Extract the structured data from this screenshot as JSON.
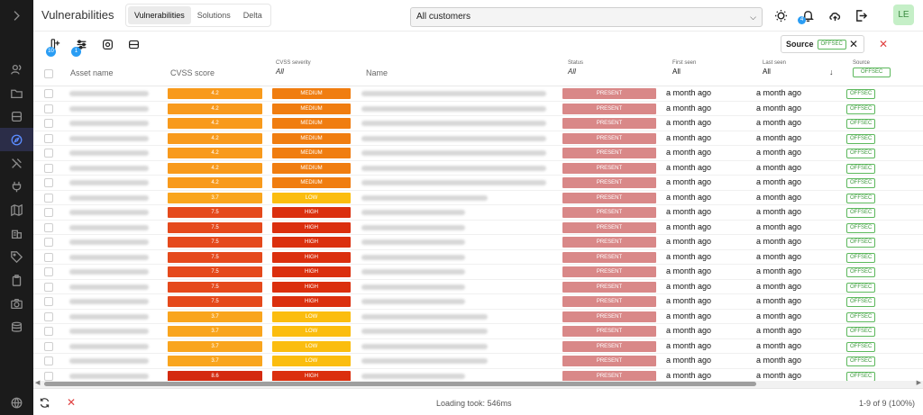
{
  "app": {
    "title": "Vulnerabilities"
  },
  "tabs": [
    {
      "label": "Vulnerabilities",
      "active": true
    },
    {
      "label": "Solutions",
      "active": false
    },
    {
      "label": "Delta",
      "active": false
    }
  ],
  "customer_select": {
    "value": "All customers"
  },
  "header_icons": {
    "theme": "sun-icon",
    "notifications": "bell-icon",
    "notification_count": "4",
    "cloud": "cloud-upload-icon",
    "logout": "logout-icon"
  },
  "user": {
    "initials": "LE"
  },
  "toolbar": {
    "columns_badge": "10",
    "filter_badge": "1",
    "filter_chip": {
      "label": "Source",
      "value": "OFFSEC"
    }
  },
  "columns": {
    "asset_name": "Asset name",
    "cvss_score": "CVSS score",
    "cvss_severity": "CVSS severity",
    "cvss_severity_filter": "All",
    "name": "Name",
    "status": "Status",
    "status_filter": "All",
    "first_seen": "First seen",
    "first_seen_filter": "All",
    "last_seen": "Last seen",
    "last_seen_filter": "All",
    "source": "Source",
    "source_filter": "OFFSEC"
  },
  "rows": [
    {
      "score": "4.2",
      "severity": "MEDIUM",
      "status": "PRESENT",
      "first_seen": "a month ago",
      "last_seen": "a month ago",
      "source": "OFFSEC"
    },
    {
      "score": "4.2",
      "severity": "MEDIUM",
      "status": "PRESENT",
      "first_seen": "a month ago",
      "last_seen": "a month ago",
      "source": "OFFSEC"
    },
    {
      "score": "4.2",
      "severity": "MEDIUM",
      "status": "PRESENT",
      "first_seen": "a month ago",
      "last_seen": "a month ago",
      "source": "OFFSEC"
    },
    {
      "score": "4.2",
      "severity": "MEDIUM",
      "status": "PRESENT",
      "first_seen": "a month ago",
      "last_seen": "a month ago",
      "source": "OFFSEC"
    },
    {
      "score": "4.2",
      "severity": "MEDIUM",
      "status": "PRESENT",
      "first_seen": "a month ago",
      "last_seen": "a month ago",
      "source": "OFFSEC"
    },
    {
      "score": "4.2",
      "severity": "MEDIUM",
      "status": "PRESENT",
      "first_seen": "a month ago",
      "last_seen": "a month ago",
      "source": "OFFSEC"
    },
    {
      "score": "4.2",
      "severity": "MEDIUM",
      "status": "PRESENT",
      "first_seen": "a month ago",
      "last_seen": "a month ago",
      "source": "OFFSEC"
    },
    {
      "score": "3.7",
      "severity": "LOW",
      "status": "PRESENT",
      "first_seen": "a month ago",
      "last_seen": "a month ago",
      "source": "OFFSEC"
    },
    {
      "score": "7.5",
      "severity": "HIGH",
      "status": "PRESENT",
      "first_seen": "a month ago",
      "last_seen": "a month ago",
      "source": "OFFSEC"
    },
    {
      "score": "7.5",
      "severity": "HIGH",
      "status": "PRESENT",
      "first_seen": "a month ago",
      "last_seen": "a month ago",
      "source": "OFFSEC"
    },
    {
      "score": "7.5",
      "severity": "HIGH",
      "status": "PRESENT",
      "first_seen": "a month ago",
      "last_seen": "a month ago",
      "source": "OFFSEC"
    },
    {
      "score": "7.5",
      "severity": "HIGH",
      "status": "PRESENT",
      "first_seen": "a month ago",
      "last_seen": "a month ago",
      "source": "OFFSEC"
    },
    {
      "score": "7.5",
      "severity": "HIGH",
      "status": "PRESENT",
      "first_seen": "a month ago",
      "last_seen": "a month ago",
      "source": "OFFSEC"
    },
    {
      "score": "7.5",
      "severity": "HIGH",
      "status": "PRESENT",
      "first_seen": "a month ago",
      "last_seen": "a month ago",
      "source": "OFFSEC"
    },
    {
      "score": "7.5",
      "severity": "HIGH",
      "status": "PRESENT",
      "first_seen": "a month ago",
      "last_seen": "a month ago",
      "source": "OFFSEC"
    },
    {
      "score": "3.7",
      "severity": "LOW",
      "status": "PRESENT",
      "first_seen": "a month ago",
      "last_seen": "a month ago",
      "source": "OFFSEC"
    },
    {
      "score": "3.7",
      "severity": "LOW",
      "status": "PRESENT",
      "first_seen": "a month ago",
      "last_seen": "a month ago",
      "source": "OFFSEC"
    },
    {
      "score": "3.7",
      "severity": "LOW",
      "status": "PRESENT",
      "first_seen": "a month ago",
      "last_seen": "a month ago",
      "source": "OFFSEC"
    },
    {
      "score": "3.7",
      "severity": "LOW",
      "status": "PRESENT",
      "first_seen": "a month ago",
      "last_seen": "a month ago",
      "source": "OFFSEC"
    },
    {
      "score": "8.6",
      "severity": "HIGH",
      "status": "PRESENT",
      "first_seen": "a month ago",
      "last_seen": "a month ago",
      "source": "OFFSEC"
    }
  ],
  "colors": {
    "medium_score": "#f89a1c",
    "medium_sev": "#f07d10",
    "low_score": "#f9a51e",
    "low_sev": "#fbbd0f",
    "high_score": "#e5491c",
    "high_sev": "#db2f0e",
    "high86_score": "#d42a10",
    "status": "#d98888"
  },
  "footer": {
    "loading": "Loading took: 546ms",
    "pagination": "1-9 of 9 (100%)"
  }
}
